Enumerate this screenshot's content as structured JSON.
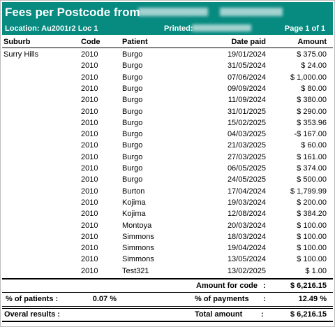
{
  "header": {
    "title": "Fees per Postcode from",
    "location": "Location: Au2001r2 Loc 1",
    "printed": "Printed:",
    "page": "Page 1 of 1"
  },
  "table": {
    "columns": [
      "Suburb",
      "Code",
      "Patient",
      "Date paid",
      "Amount"
    ],
    "suburb": "Surry Hills",
    "rows": [
      [
        "2010",
        "Burgo",
        "19/01/2024",
        "$ 375.00"
      ],
      [
        "2010",
        "Burgo",
        "31/05/2024",
        "$ 24.00"
      ],
      [
        "2010",
        "Burgo",
        "07/06/2024",
        "$ 1,000.00"
      ],
      [
        "2010",
        "Burgo",
        "09/09/2024",
        "$ 80.00"
      ],
      [
        "2010",
        "Burgo",
        "11/09/2024",
        "$ 380.00"
      ],
      [
        "2010",
        "Burgo",
        "31/01/2025",
        "$ 290.00"
      ],
      [
        "2010",
        "Burgo",
        "15/02/2025",
        "$ 353.96"
      ],
      [
        "2010",
        "Burgo",
        "04/03/2025",
        "-$ 167.00"
      ],
      [
        "2010",
        "Burgo",
        "21/03/2025",
        "$ 60.00"
      ],
      [
        "2010",
        "Burgo",
        "27/03/2025",
        "$ 161.00"
      ],
      [
        "2010",
        "Burgo",
        "06/05/2025",
        "$ 374.00"
      ],
      [
        "2010",
        "Burgo",
        "24/05/2025",
        "$ 500.00"
      ],
      [
        "2010",
        "Burton",
        "17/04/2024",
        "$ 1,799.99"
      ],
      [
        "2010",
        "Kojima",
        "19/03/2024",
        "$ 200.00"
      ],
      [
        "2010",
        "Kojima",
        "12/08/2024",
        "$ 384.20"
      ],
      [
        "2010",
        "Montoya",
        "20/03/2024",
        "$ 100.00"
      ],
      [
        "2010",
        "Simmons",
        "18/03/2024",
        "$ 100.00"
      ],
      [
        "2010",
        "Simmons",
        "19/04/2024",
        "$ 100.00"
      ],
      [
        "2010",
        "Simmons",
        "13/05/2024",
        "$ 100.00"
      ],
      [
        "2010",
        "Test321",
        "13/02/2025",
        "$ 1.00"
      ]
    ]
  },
  "footer": {
    "separator": ":",
    "amount_for_code": {
      "label": "Amount for code",
      "value": "$ 6,216.15"
    },
    "patients": {
      "label": "% of patients :",
      "value": "0.07 %"
    },
    "payments": {
      "label": "% of payments",
      "value": "12.49 %"
    },
    "overall": {
      "label": "Overal results :",
      "total_label": "Total amount",
      "value": "$ 6,216.15"
    }
  }
}
